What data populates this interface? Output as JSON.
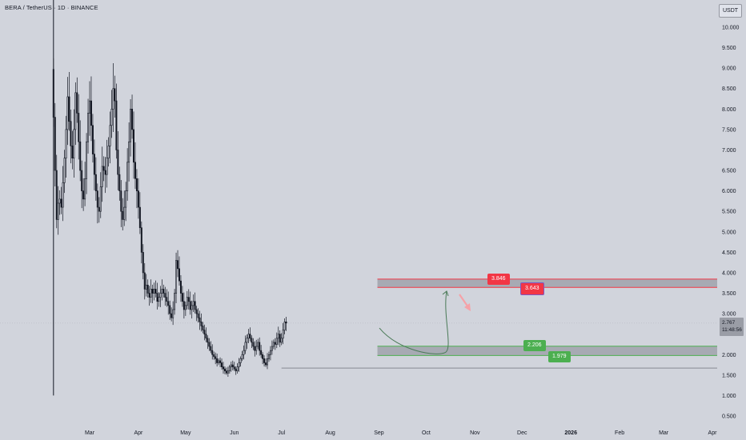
{
  "header": {
    "title": "BERA / TetherUS · 1D · BINANCE",
    "currency": "USDT"
  },
  "price_tag": {
    "price": "2.767",
    "countdown": "11:48:56"
  },
  "colors": {
    "candle": "#131722",
    "resistance": "#f23645",
    "support": "#4caf50",
    "zone_fill": "#a7aab3",
    "arrow_up": "#4a7a57",
    "arrow_down": "#f5a2a8"
  },
  "chart_data": {
    "type": "candlestick",
    "title": "BERA / TetherUS · 1D · BINANCE",
    "y_ticks": [
      "10.000",
      "9.500",
      "9.000",
      "8.500",
      "8.000",
      "7.500",
      "7.000",
      "6.500",
      "6.000",
      "5.500",
      "5.000",
      "4.500",
      "4.000",
      "3.500",
      "3.000",
      "2.500",
      "2.000",
      "1.500",
      "1.000",
      "0.500"
    ],
    "x_ticks": [
      "Mar",
      "Apr",
      "May",
      "Jun",
      "Jul",
      "Aug",
      "Sep",
      "Oct",
      "Nov",
      "Dec",
      "2026",
      "Feb",
      "Mar",
      "Apr"
    ],
    "ylim": [
      0.3,
      10.6
    ],
    "grid": false,
    "series_daily_close_approx": {
      "start": "2025-02-06",
      "values": [
        7.8,
        6.5,
        5.3,
        5.7,
        5.8,
        5.6,
        6.2,
        6.8,
        7.5,
        8.3,
        7.7,
        7.1,
        6.8,
        7.5,
        8.4,
        7.9,
        7.2,
        6.5,
        6.0,
        5.8,
        6.3,
        7.2,
        7.9,
        8.2,
        7.6,
        6.9,
        6.4,
        6.0,
        5.6,
        5.5,
        6.1,
        6.6,
        6.5,
        6.4,
        6.8,
        7.1,
        7.6,
        8.0,
        8.5,
        8.2,
        7.0,
        6.4,
        6.0,
        5.5,
        5.3,
        5.6,
        6.0,
        6.7,
        7.2,
        8.0,
        7.5,
        6.7,
        6.3,
        6.0,
        5.6,
        5.1,
        4.5,
        4.0,
        3.6,
        3.7,
        3.5,
        3.4,
        3.6,
        3.5,
        3.6,
        3.5,
        3.3,
        3.4,
        3.5,
        3.6,
        3.5,
        3.4,
        3.3,
        3.2,
        3.0,
        2.9,
        3.1,
        3.5,
        4.3,
        4.1,
        3.8,
        3.5,
        3.3,
        3.1,
        3.2,
        3.4,
        3.3,
        3.1,
        3.2,
        3.3,
        3.1,
        3.0,
        2.9,
        2.8,
        2.7,
        2.6,
        2.5,
        2.4,
        2.3,
        2.2,
        2.1,
        2.0,
        1.95,
        1.9,
        1.8,
        1.85,
        1.8,
        1.7,
        1.65,
        1.6,
        1.55,
        1.6,
        1.7,
        1.75,
        1.7,
        1.65,
        1.6,
        1.7,
        1.8,
        1.9,
        2.0,
        2.1,
        2.3,
        2.4,
        2.5,
        2.4,
        2.3,
        2.2,
        2.1,
        2.2,
        2.3,
        2.1,
        2.0,
        1.9,
        1.8,
        1.75,
        1.9,
        2.0,
        2.1,
        2.2,
        2.3,
        2.25,
        2.4,
        2.5,
        2.3,
        2.4,
        2.6,
        2.8,
        2.77
      ]
    },
    "annotations": {
      "resistance_zone": {
        "top": 3.846,
        "bottom": 3.643,
        "from": "2025-08-31"
      },
      "support_zone": {
        "top": 2.206,
        "bottom": 1.979,
        "from": "2025-08-31"
      },
      "base_line": {
        "value": 1.67,
        "from": "2025-07-01"
      },
      "projection": "decline to support zone then rally to resistance zone, then rejection"
    },
    "zone_labels": {
      "resistance_top": "3.846",
      "resistance_bottom": "3.643",
      "support_top": "2.206",
      "support_bottom": "1.979"
    },
    "spike": {
      "date": "2025-02-06",
      "high": 10.6,
      "low": 1.0
    }
  }
}
